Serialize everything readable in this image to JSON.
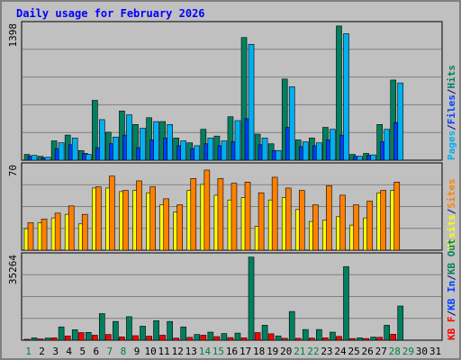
{
  "title": "Daily usage for February 2026",
  "colors": {
    "background": "#c0c0c0",
    "title": "#0000ff",
    "pages": "#00b0f0",
    "files": "#0040ff",
    "hits": "#008060",
    "visits": "#ffff00",
    "sites": "#ff8000",
    "kbf": "#ff0000",
    "kbin": "#0040ff",
    "kbout": "#008060",
    "weekend_day": "#008040",
    "weekday": "#000080"
  },
  "chart_data": [
    {
      "type": "bar",
      "name": "hits-files-pages",
      "ymax_label": "1398",
      "ylim": [
        0,
        1398
      ],
      "legend": [
        "Pages",
        "/",
        "Files",
        "/",
        "Hits"
      ],
      "categories": [
        "1",
        "2",
        "3",
        "4",
        "5",
        "6",
        "7",
        "8",
        "9",
        "10",
        "11",
        "12",
        "13",
        "14",
        "15",
        "16",
        "17",
        "18",
        "19",
        "20",
        "21",
        "22",
        "23",
        "24",
        "25",
        "26",
        "27",
        "28",
        "29",
        "30",
        "31"
      ],
      "series": [
        {
          "name": "Hits",
          "values": [
            60,
            40,
            200,
            260,
            100,
            620,
            290,
            510,
            370,
            440,
            400,
            230,
            180,
            320,
            250,
            450,
            1270,
            270,
            170,
            840,
            210,
            230,
            340,
            1390,
            60,
            70,
            370,
            830,
            0,
            0,
            0
          ]
        },
        {
          "name": "Files",
          "values": [
            40,
            25,
            120,
            160,
            70,
            130,
            170,
            260,
            130,
            210,
            230,
            150,
            120,
            170,
            150,
            190,
            430,
            160,
            100,
            340,
            140,
            150,
            210,
            260,
            40,
            50,
            190,
            390,
            0,
            0,
            0
          ]
        },
        {
          "name": "Pages",
          "values": [
            50,
            30,
            180,
            230,
            60,
            420,
            240,
            470,
            330,
            400,
            370,
            200,
            150,
            230,
            200,
            410,
            1200,
            230,
            100,
            760,
            190,
            180,
            320,
            1310,
            40,
            55,
            320,
            800,
            0,
            0,
            0
          ]
        }
      ]
    },
    {
      "type": "bar",
      "name": "sites-visits",
      "ymax_label": "70",
      "ylim": [
        0,
        70
      ],
      "legend": [
        "Visits",
        "/",
        "Sites"
      ],
      "categories": [
        "1",
        "2",
        "3",
        "4",
        "5",
        "6",
        "7",
        "8",
        "9",
        "10",
        "11",
        "12",
        "13",
        "14",
        "15",
        "16",
        "17",
        "18",
        "19",
        "20",
        "21",
        "22",
        "23",
        "24",
        "25",
        "26",
        "27",
        "28",
        "29",
        "30",
        "31"
      ],
      "series": [
        {
          "name": "Visits",
          "values": [
            18,
            23,
            27,
            30,
            22,
            52,
            52,
            49,
            50,
            48,
            38,
            32,
            50,
            55,
            46,
            42,
            44,
            20,
            42,
            44,
            34,
            24,
            25,
            28,
            21,
            27,
            48,
            50,
            0,
            0,
            0
          ]
        },
        {
          "name": "Sites",
          "values": [
            23,
            26,
            31,
            37,
            30,
            53,
            62,
            50,
            58,
            53,
            43,
            38,
            60,
            67,
            60,
            56,
            57,
            48,
            61,
            52,
            50,
            38,
            54,
            46,
            38,
            41,
            50,
            57,
            0,
            0,
            0
          ]
        }
      ]
    },
    {
      "type": "bar",
      "name": "kbytes",
      "ymax_label": "35264",
      "ylim": [
        0,
        35264
      ],
      "legend": [
        "KB F",
        "/",
        "KB In",
        "/",
        "KB Out"
      ],
      "categories": [
        "1",
        "2",
        "3",
        "4",
        "5",
        "6",
        "7",
        "8",
        "9",
        "10",
        "11",
        "12",
        "13",
        "14",
        "15",
        "16",
        "17",
        "18",
        "19",
        "20",
        "21",
        "22",
        "23",
        "24",
        "25",
        "26",
        "27",
        "28",
        "29",
        "30",
        "31"
      ],
      "series": [
        {
          "name": "KB F",
          "values": [
            400,
            500,
            1000,
            1800,
            3200,
            2100,
            2400,
            1400,
            1900,
            1700,
            2100,
            900,
            1200,
            2100,
            1500,
            1100,
            1000,
            3200,
            2700,
            800,
            800,
            900,
            1000,
            1600,
            700,
            700,
            1200,
            2500,
            0,
            0,
            0
          ]
        },
        {
          "name": "KB In",
          "values": [
            0,
            0,
            0,
            0,
            0,
            0,
            0,
            0,
            0,
            0,
            0,
            0,
            0,
            0,
            0,
            0,
            0,
            0,
            0,
            0,
            0,
            0,
            0,
            0,
            0,
            0,
            0,
            0,
            0,
            0,
            0
          ]
        },
        {
          "name": "KB Out",
          "values": [
            1000,
            900,
            5600,
            4400,
            3300,
            11200,
            7900,
            9900,
            5900,
            8200,
            7900,
            5600,
            2400,
            3400,
            2800,
            3000,
            35000,
            6300,
            1800,
            12100,
            4500,
            4500,
            3400,
            31000,
            1000,
            1300,
            6300,
            14400,
            0,
            0,
            0
          ]
        }
      ]
    }
  ],
  "x_day_highlight": [
    "1",
    "7",
    "8",
    "14",
    "15",
    "21",
    "22",
    "28",
    "29"
  ]
}
